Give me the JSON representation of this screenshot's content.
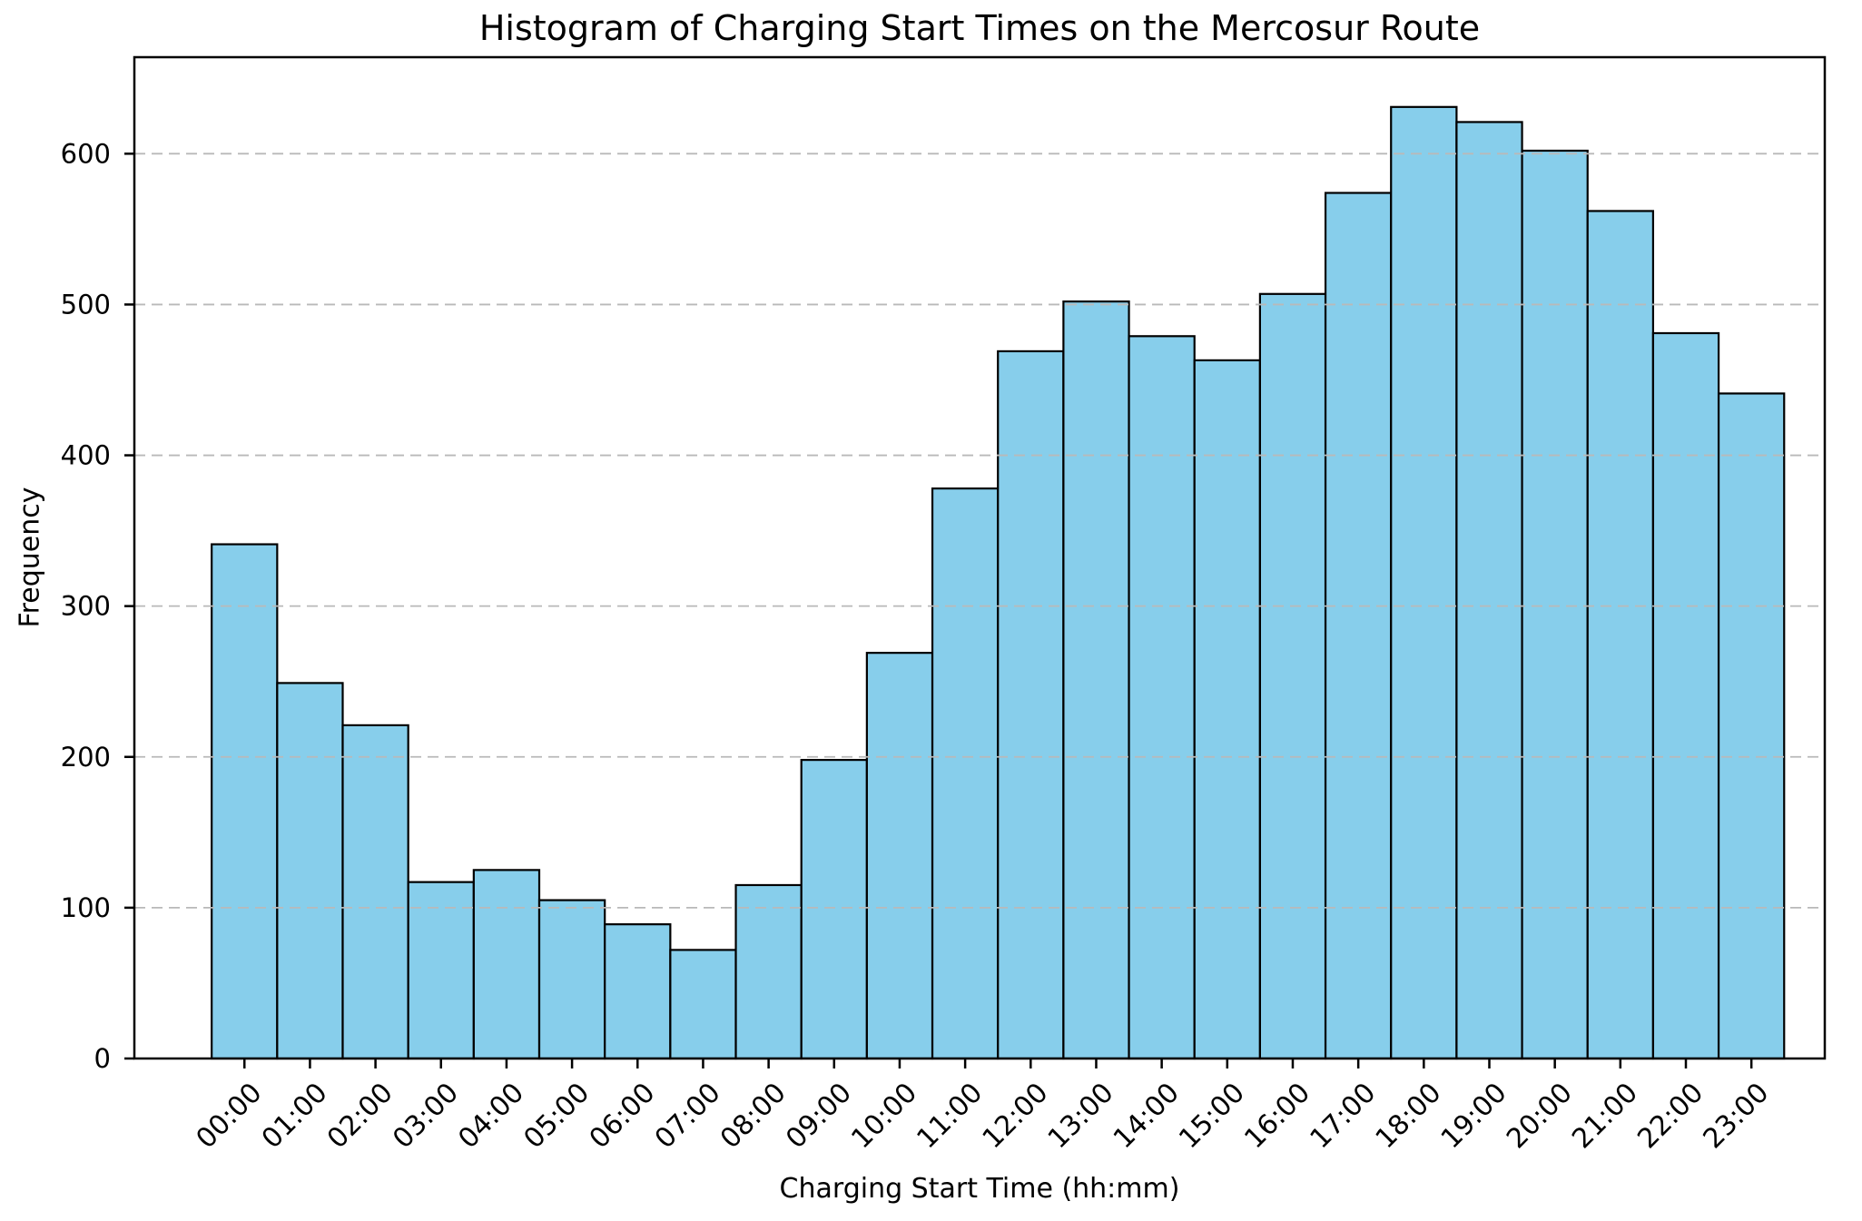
{
  "chart_data": {
    "type": "bar",
    "title": "Histogram of Charging Start Times on the Mercosur Route",
    "xlabel": "Charging Start Time (hh:mm)",
    "ylabel": "Frequency",
    "categories": [
      "00:00",
      "01:00",
      "02:00",
      "03:00",
      "04:00",
      "05:00",
      "06:00",
      "07:00",
      "08:00",
      "09:00",
      "10:00",
      "11:00",
      "12:00",
      "13:00",
      "14:00",
      "15:00",
      "16:00",
      "17:00",
      "18:00",
      "19:00",
      "20:00",
      "21:00",
      "22:00",
      "23:00"
    ],
    "values": [
      341,
      249,
      221,
      117,
      125,
      105,
      89,
      72,
      115,
      198,
      269,
      378,
      469,
      502,
      479,
      463,
      507,
      574,
      631,
      621,
      602,
      562,
      481,
      441
    ],
    "yticks": [
      0,
      100,
      200,
      300,
      400,
      500,
      600
    ],
    "ylim": [
      0,
      664
    ],
    "grid": "horizontal-dashed",
    "legend": "none",
    "x_tick_rotation": 45,
    "bar_color": "#87CEEB",
    "bar_edge_color": "#000000",
    "grid_color": "#b9b9b9",
    "axis_color": "#000000"
  }
}
